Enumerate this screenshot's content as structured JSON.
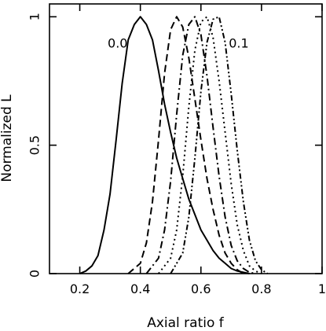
{
  "chart_data": {
    "type": "line",
    "xlabel": "Axial ratio f",
    "ylabel": "Normalized L",
    "xlim": [
      0.1,
      1.0
    ],
    "ylim": [
      0.0,
      1.05
    ],
    "grid": false,
    "x_ticks": [
      0.2,
      0.4,
      0.6,
      0.8,
      1
    ],
    "x_tick_labels": [
      "0.2",
      "0.4",
      "0.6",
      "0.8",
      "1"
    ],
    "y_ticks": [
      0,
      0.5,
      1
    ],
    "y_tick_labels": [
      "0",
      "0.5",
      "1"
    ],
    "annotations": [
      {
        "text": "0.0",
        "x": 0.325,
        "y": 0.88
      },
      {
        "text": "0.1",
        "x": 0.725,
        "y": 0.88
      }
    ],
    "colors": {
      "line": "#000000",
      "axes": "#000000"
    },
    "series": [
      {
        "style": "solid",
        "x": [
          0.2,
          0.22,
          0.24,
          0.26,
          0.28,
          0.3,
          0.32,
          0.34,
          0.36,
          0.38,
          0.4,
          0.42,
          0.44,
          0.46,
          0.48,
          0.5,
          0.52,
          0.54,
          0.56,
          0.58,
          0.6,
          0.62,
          0.64,
          0.66,
          0.68,
          0.7,
          0.72,
          0.74,
          0.76
        ],
        "y": [
          0.0,
          0.01,
          0.03,
          0.07,
          0.17,
          0.31,
          0.52,
          0.74,
          0.91,
          0.97,
          1.0,
          0.97,
          0.91,
          0.79,
          0.66,
          0.55,
          0.45,
          0.37,
          0.29,
          0.23,
          0.17,
          0.13,
          0.09,
          0.06,
          0.04,
          0.02,
          0.01,
          0.005,
          0.0
        ]
      },
      {
        "style": "dashed",
        "x": [
          0.36,
          0.4,
          0.42,
          0.44,
          0.46,
          0.48,
          0.5,
          0.52,
          0.54,
          0.56,
          0.58,
          0.6,
          0.62,
          0.64,
          0.66,
          0.68,
          0.7,
          0.72,
          0.74
        ],
        "y": [
          0.0,
          0.04,
          0.12,
          0.28,
          0.52,
          0.78,
          0.95,
          1.0,
          0.96,
          0.84,
          0.68,
          0.52,
          0.37,
          0.25,
          0.15,
          0.08,
          0.04,
          0.015,
          0.0
        ]
      },
      {
        "style": "dashdot",
        "x": [
          0.42,
          0.46,
          0.48,
          0.5,
          0.52,
          0.54,
          0.56,
          0.58,
          0.6,
          0.62,
          0.64,
          0.66,
          0.68,
          0.7,
          0.72,
          0.74,
          0.76,
          0.78
        ],
        "y": [
          0.0,
          0.06,
          0.17,
          0.36,
          0.62,
          0.85,
          0.97,
          1.0,
          0.93,
          0.77,
          0.57,
          0.38,
          0.22,
          0.11,
          0.05,
          0.02,
          0.005,
          0.0
        ]
      },
      {
        "style": "dotted",
        "x": [
          0.46,
          0.5,
          0.52,
          0.54,
          0.56,
          0.58,
          0.6,
          0.62,
          0.64,
          0.66,
          0.68,
          0.7,
          0.72,
          0.74,
          0.76,
          0.78,
          0.8
        ],
        "y": [
          0.0,
          0.06,
          0.17,
          0.38,
          0.65,
          0.87,
          0.98,
          1.0,
          0.92,
          0.75,
          0.55,
          0.35,
          0.19,
          0.09,
          0.03,
          0.01,
          0.0
        ]
      },
      {
        "style": "dashdotdot",
        "x": [
          0.5,
          0.54,
          0.56,
          0.58,
          0.6,
          0.62,
          0.64,
          0.66,
          0.68,
          0.7,
          0.72,
          0.74,
          0.76,
          0.78,
          0.8,
          0.82
        ],
        "y": [
          0.0,
          0.08,
          0.22,
          0.45,
          0.71,
          0.9,
          0.99,
          1.0,
          0.9,
          0.7,
          0.48,
          0.28,
          0.13,
          0.05,
          0.015,
          0.0
        ]
      }
    ]
  }
}
